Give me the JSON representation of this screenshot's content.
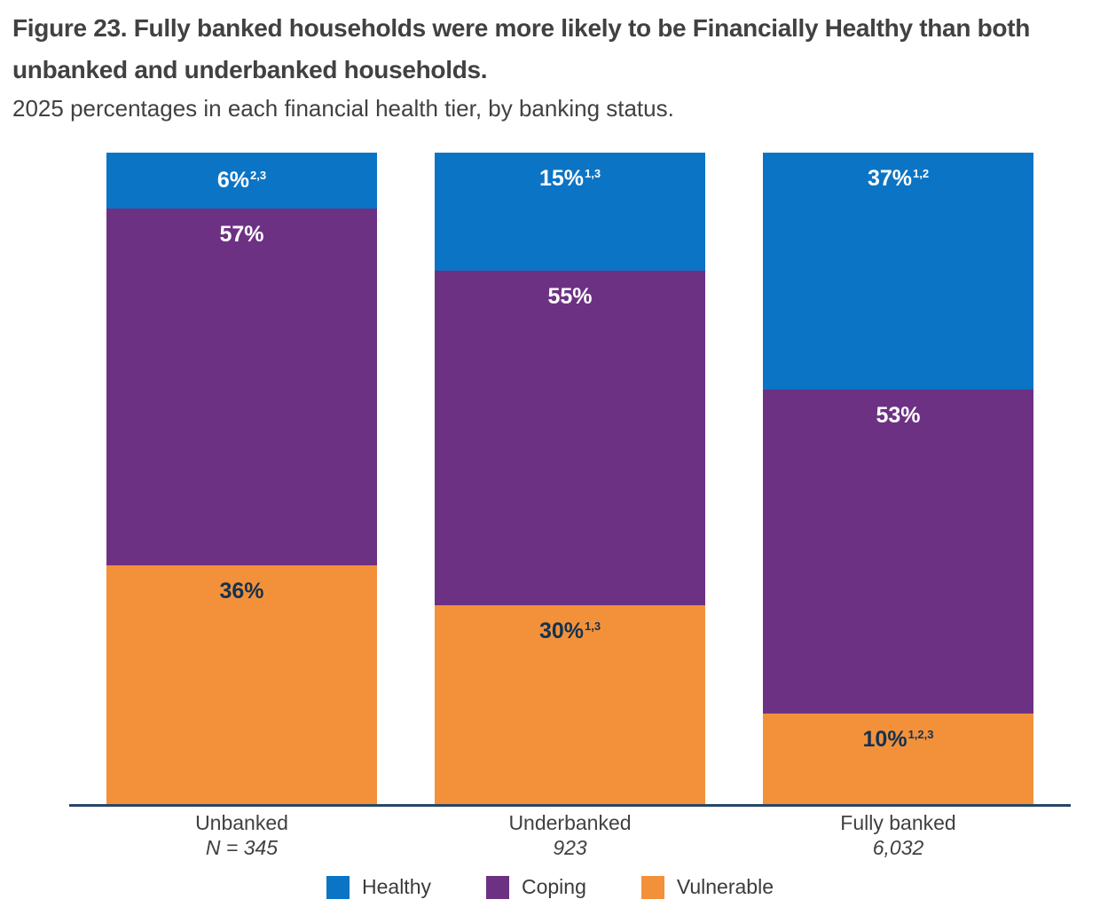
{
  "figure": {
    "title": "Figure 23. Fully banked households were more likely to be Financially Healthy than both unbanked and underbanked households.",
    "subtitle": "2025 percentages in each financial health tier, by banking status."
  },
  "colors": {
    "healthy_blue": "#0b74c4",
    "coping_purple": "#6d3184",
    "vulnerable_orange": "#f3913a",
    "axis_line": "#274666",
    "value_label_on_orange": "#14324f",
    "value_label_on_dark": "#ffffff",
    "text": "#414042"
  },
  "chart_data": {
    "type": "bar",
    "stacked": true,
    "unit": "percent",
    "title": "Figure 23. Fully banked households were more likely to be Financially Healthy than both unbanked and underbanked households.",
    "subtitle": "2025 percentages in each financial health tier, by banking status.",
    "categories": [
      "Unbanked",
      "Underbanked",
      "Fully banked"
    ],
    "sample_sizes": [
      "N = 345",
      "923",
      "6,032"
    ],
    "series": [
      {
        "name": "Healthy",
        "color": "#0b74c4",
        "label_color": "#ffffff",
        "values": [
          6,
          15,
          37
        ],
        "superscripts": [
          "2,3",
          "1,3",
          "1,2"
        ]
      },
      {
        "name": "Coping",
        "color": "#6d3184",
        "label_color": "#ffffff",
        "values": [
          57,
          55,
          53
        ],
        "superscripts": [
          "",
          "",
          ""
        ]
      },
      {
        "name": "Vulnerable",
        "color": "#f3913a",
        "label_color": "#14324f",
        "values": [
          36,
          30,
          10
        ],
        "superscripts": [
          "",
          "1,3",
          "1,2,3"
        ]
      }
    ],
    "legend": [
      "Healthy",
      "Coping",
      "Vulnerable"
    ],
    "legend_position": "bottom",
    "ylim": [
      0,
      100
    ],
    "grid": false,
    "xlabel": "",
    "ylabel": ""
  }
}
